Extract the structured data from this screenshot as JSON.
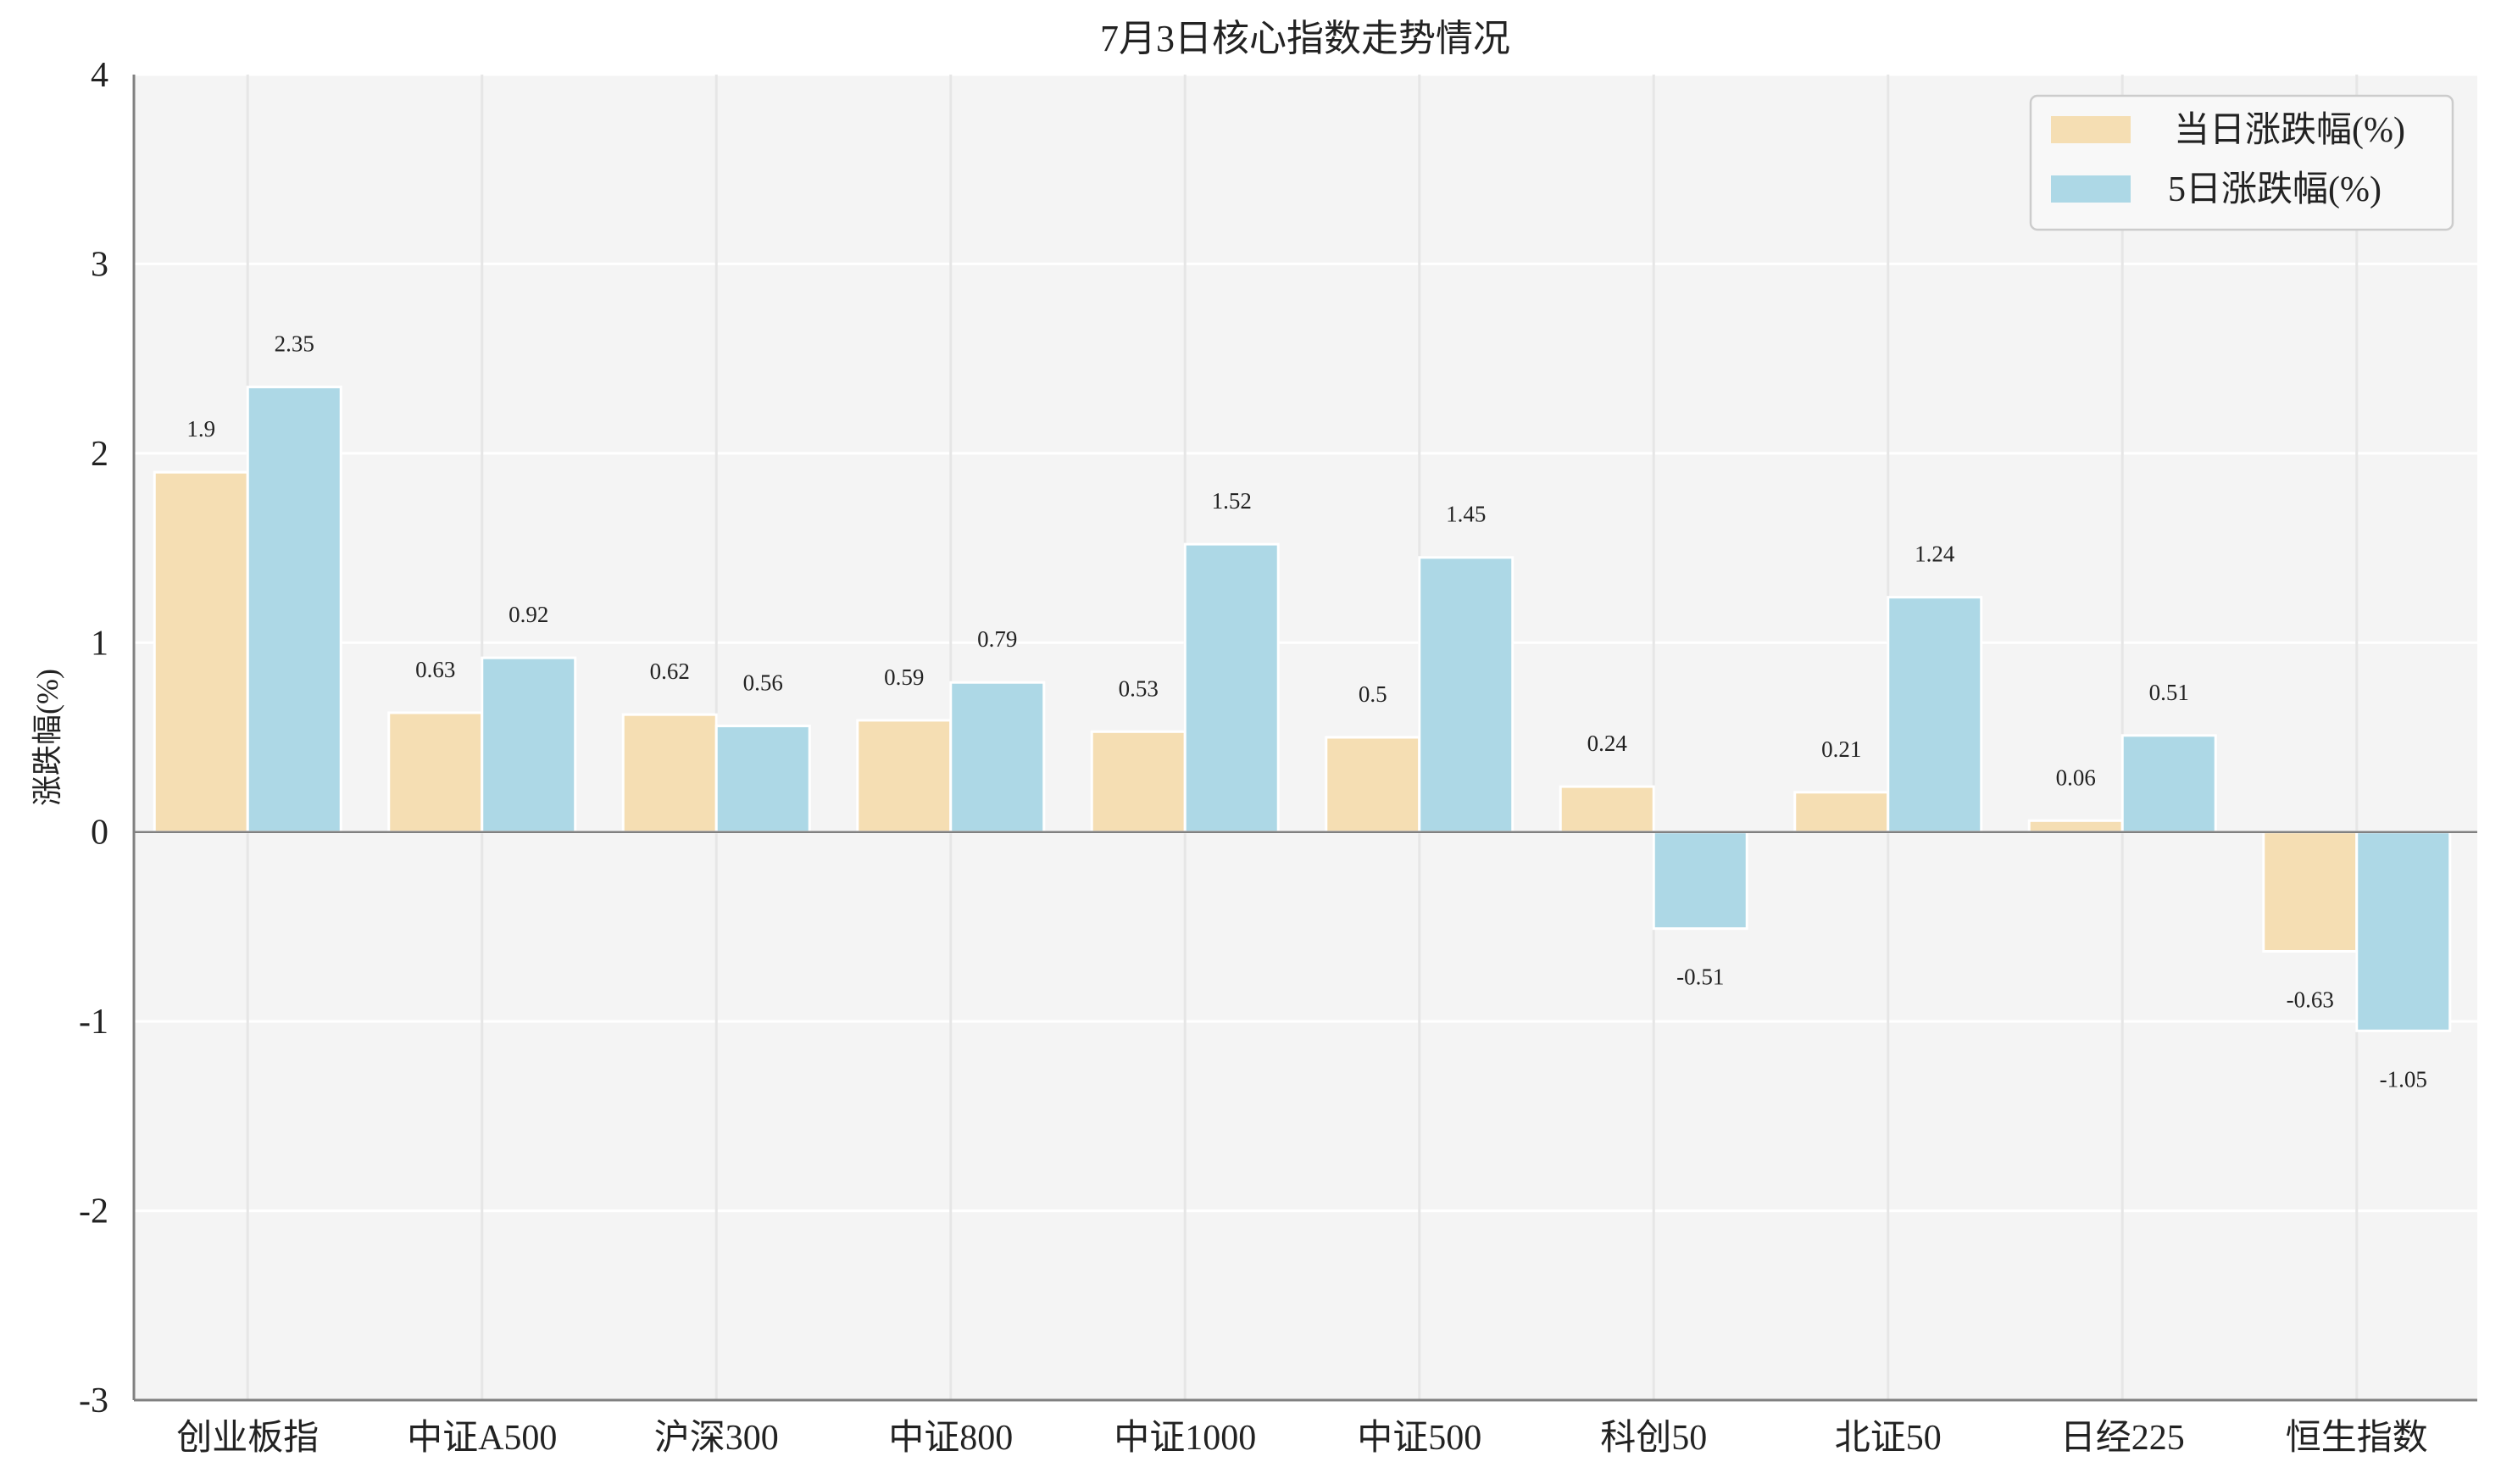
{
  "chart_data": {
    "type": "bar",
    "title": "7月3日核心指数走势情况",
    "xlabel": "",
    "ylabel": "涨跌幅(%)",
    "ylim": [
      -3,
      4
    ],
    "yticks": [
      "-3",
      "-2",
      "-1",
      "0",
      "1",
      "2",
      "3",
      "4"
    ],
    "grid": true,
    "legend_position": "top-right",
    "categories": [
      "创业板指",
      "中证A500",
      "沪深300",
      "中证800",
      "中证1000",
      "中证500",
      "科创50",
      "北证50",
      "日经225",
      "恒生指数"
    ],
    "series": [
      {
        "name": "当日涨跌幅(%)",
        "color": "#F5DEB3",
        "values": [
          1.9,
          0.63,
          0.62,
          0.59,
          0.53,
          0.5,
          0.24,
          0.21,
          0.06,
          -0.63
        ],
        "labels": [
          "1.9",
          "0.63",
          "0.62",
          "0.59",
          "0.53",
          "0.5",
          "0.24",
          "0.21",
          "0.06",
          "-0.63"
        ]
      },
      {
        "name": "5日涨跌幅(%)",
        "color": "#ADD8E6",
        "values": [
          2.35,
          0.92,
          0.56,
          0.79,
          1.52,
          1.45,
          -0.51,
          1.24,
          0.51,
          -1.05
        ],
        "labels": [
          "2.35",
          "0.92",
          "0.56",
          "0.79",
          "1.52",
          "1.45",
          "-0.51",
          "1.24",
          "0.51",
          "-1.05"
        ]
      }
    ]
  }
}
